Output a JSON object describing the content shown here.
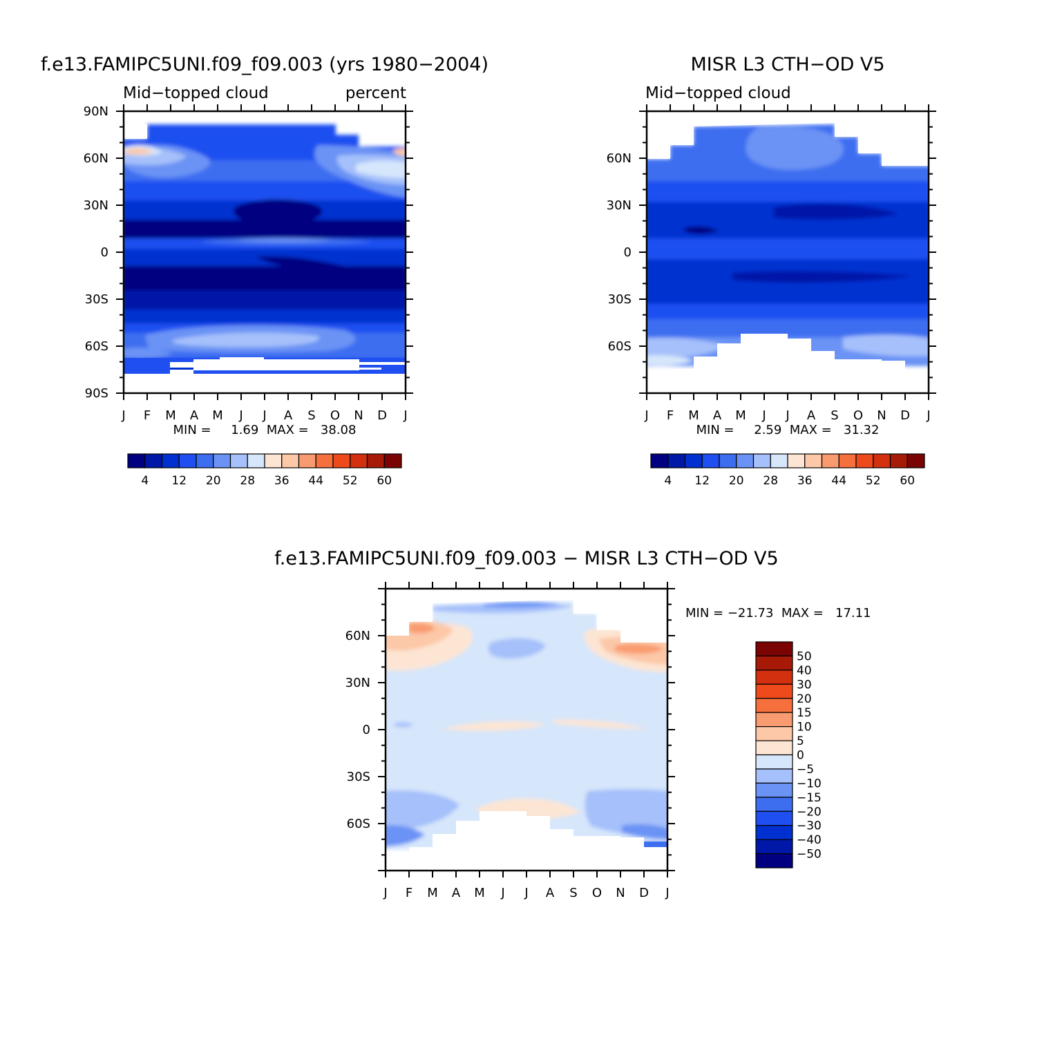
{
  "panels": [
    {
      "id": "model",
      "title": "f.e13.FAMIPC5UNI.f09_f09.003 (yrs 1980−2004)",
      "subtitle_left": "Mid−topped cloud",
      "subtitle_right": "percent",
      "stats": "MIN =     1.69  MAX =   38.08",
      "month_labels": [
        "J",
        "F",
        "M",
        "A",
        "M",
        "J",
        "J",
        "A",
        "S",
        "O",
        "N",
        "D",
        "J"
      ],
      "lat_labels": [
        "90N",
        "60N",
        "30N",
        "0",
        "30S",
        "60S",
        "90S"
      ]
    },
    {
      "id": "obs",
      "title": "MISR L3 CTH−OD V5",
      "subtitle_left": "Mid−topped cloud",
      "subtitle_right": "",
      "stats": "MIN =     2.59  MAX =   31.32",
      "month_labels": [
        "J",
        "F",
        "M",
        "A",
        "M",
        "J",
        "J",
        "A",
        "S",
        "O",
        "N",
        "D",
        "J"
      ],
      "lat_labels": [
        "60N",
        "30N",
        "0",
        "30S",
        "60S"
      ]
    },
    {
      "id": "diff",
      "title": "f.e13.FAMIPC5UNI.f09_f09.003 − MISR L3 CTH−OD V5",
      "subtitle_left": "",
      "subtitle_right": "",
      "stats": "MIN = −21.73  MAX =   17.11",
      "month_labels": [
        "J",
        "F",
        "M",
        "A",
        "M",
        "J",
        "J",
        "A",
        "S",
        "O",
        "N",
        "D",
        "J"
      ],
      "lat_labels": [
        "60N",
        "30N",
        "0",
        "30S",
        "60S"
      ]
    }
  ],
  "colorbars": {
    "absolute": {
      "colors": [
        "#000080",
        "#0018a8",
        "#0030d0",
        "#1f4ff0",
        "#3d6ef0",
        "#6b93f5",
        "#a5c0fa",
        "#d6e6fb",
        "#fde5d3",
        "#fcc8a8",
        "#f99b70",
        "#f5703c",
        "#ef4a1b",
        "#d2300f",
        "#a81a08",
        "#7a0404"
      ],
      "labels": [
        "4",
        "12",
        "20",
        "28",
        "36",
        "44",
        "52",
        "60"
      ]
    },
    "difference": {
      "colors": [
        "#000080",
        "#0018a8",
        "#0030d0",
        "#1f4ff0",
        "#3d6ef0",
        "#6b93f5",
        "#a5c0fa",
        "#d6e6fb",
        "#fde5d3",
        "#fcc8a8",
        "#f99b70",
        "#f5703c",
        "#ef4a1b",
        "#d2300f",
        "#a81a08",
        "#7a0404"
      ],
      "labels": [
        "−50",
        "−40",
        "−30",
        "−20",
        "−15",
        "−10",
        "−5",
        "0",
        "5",
        "10",
        "15",
        "20",
        "30",
        "40",
        "50"
      ]
    }
  },
  "chart_data": [
    {
      "type": "heatmap",
      "title": "f.e13.FAMIPC5UNI.f09_f09.003 (yrs 1980−2004)",
      "subtitle": "Mid−topped cloud",
      "units": "percent",
      "x": [
        "J",
        "F",
        "M",
        "A",
        "M",
        "J",
        "J",
        "A",
        "S",
        "O",
        "N",
        "D",
        "J"
      ],
      "y": [
        -90,
        -60,
        -30,
        0,
        30,
        60,
        90
      ],
      "ylabels": [
        "90S",
        "60S",
        "30S",
        "0",
        "30N",
        "60N",
        "90N"
      ],
      "ylim": [
        -90,
        90
      ],
      "min": 1.69,
      "max": 38.08,
      "levels": [
        4,
        8,
        12,
        16,
        20,
        24,
        28,
        32,
        36,
        40,
        44,
        48,
        52,
        56,
        60
      ]
    },
    {
      "type": "heatmap",
      "title": "MISR L3 CTH−OD V5",
      "subtitle": "Mid−topped cloud",
      "x": [
        "J",
        "F",
        "M",
        "A",
        "M",
        "J",
        "J",
        "A",
        "S",
        "O",
        "N",
        "D",
        "J"
      ],
      "ylabels": [
        "60S",
        "30S",
        "0",
        "30N",
        "60N"
      ],
      "ylim": [
        -90,
        90
      ],
      "min": 2.59,
      "max": 31.32,
      "levels": [
        4,
        8,
        12,
        16,
        20,
        24,
        28,
        32,
        36,
        40,
        44,
        48,
        52,
        56,
        60
      ]
    },
    {
      "type": "heatmap",
      "title": "f.e13.FAMIPC5UNI.f09_f09.003 − MISR L3 CTH−OD V5",
      "x": [
        "J",
        "F",
        "M",
        "A",
        "M",
        "J",
        "J",
        "A",
        "S",
        "O",
        "N",
        "D",
        "J"
      ],
      "ylabels": [
        "60S",
        "30S",
        "0",
        "30N",
        "60N"
      ],
      "ylim": [
        -90,
        90
      ],
      "min": -21.73,
      "max": 17.11,
      "levels": [
        -50,
        -40,
        -30,
        -20,
        -15,
        -10,
        -5,
        0,
        5,
        10,
        15,
        20,
        30,
        40,
        50
      ]
    }
  ]
}
